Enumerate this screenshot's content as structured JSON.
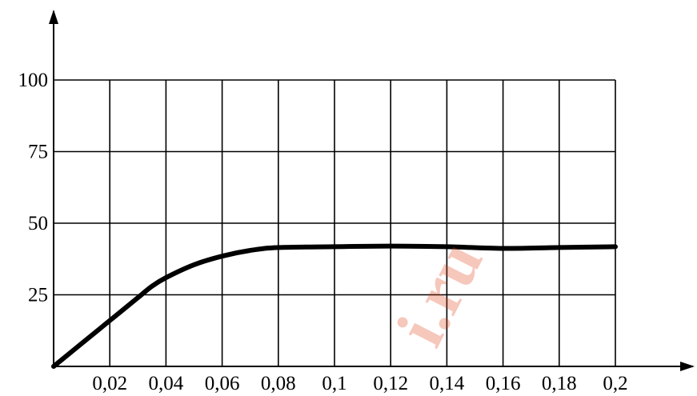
{
  "chart_data": {
    "type": "line",
    "title": "",
    "xlabel": "",
    "ylabel": "",
    "xlim": [
      0,
      0.2
    ],
    "ylim": [
      0,
      100
    ],
    "grid": true,
    "x_ticks": [
      "0,02",
      "0,04",
      "0,06",
      "0,08",
      "0,1",
      "0,12",
      "0,14",
      "0,16",
      "0,18",
      "0,2"
    ],
    "y_ticks": [
      "25",
      "50",
      "75",
      "100"
    ],
    "series": [
      {
        "x": [
          0,
          0.01,
          0.02,
          0.03,
          0.035,
          0.04,
          0.05,
          0.06,
          0.07,
          0.08,
          0.1,
          0.12,
          0.14,
          0.16,
          0.18,
          0.2
        ],
        "y": [
          0,
          8,
          16,
          24,
          28,
          31,
          35.5,
          38.5,
          40.5,
          41.5,
          41.8,
          42,
          41.8,
          41.2,
          41.5,
          41.8
        ]
      }
    ],
    "line_color": "#000000"
  },
  "watermark": {
    "text": "reshimvse.ru",
    "visible_fragment": "i.ru",
    "color": "#e03a10"
  }
}
